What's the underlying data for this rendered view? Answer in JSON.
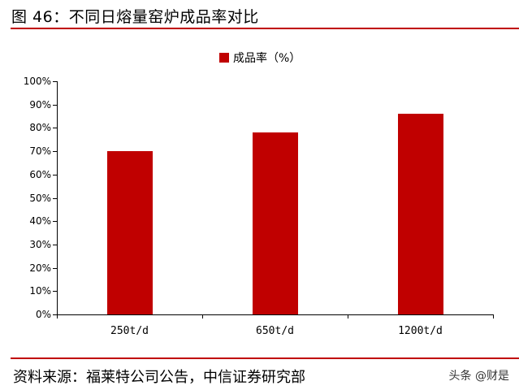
{
  "header": {
    "title": "图 46：不同日熔量窑炉成品率对比"
  },
  "footer": {
    "source": "资料来源：福莱特公司公告，中信证券研究部",
    "watermark": "头条 @财是"
  },
  "colors": {
    "accent": "#c00000",
    "bar": "#c00000",
    "axis": "#000000"
  },
  "legend": {
    "label": "成品率（%）",
    "icon": "square-swatch"
  },
  "chart_data": {
    "type": "bar",
    "title": "图 46：不同日熔量窑炉成品率对比",
    "xlabel": "",
    "ylabel": "",
    "categories": [
      "250t/d",
      "650t/d",
      "1200t/d"
    ],
    "series": [
      {
        "name": "成品率（%）",
        "values": [
          70,
          78,
          86
        ],
        "color": "#c00000"
      }
    ],
    "ylim": [
      0,
      100
    ],
    "yticks": [
      "0%",
      "10%",
      "20%",
      "30%",
      "40%",
      "50%",
      "60%",
      "70%",
      "80%",
      "90%",
      "100%"
    ],
    "grid": false,
    "legend_position": "top"
  }
}
